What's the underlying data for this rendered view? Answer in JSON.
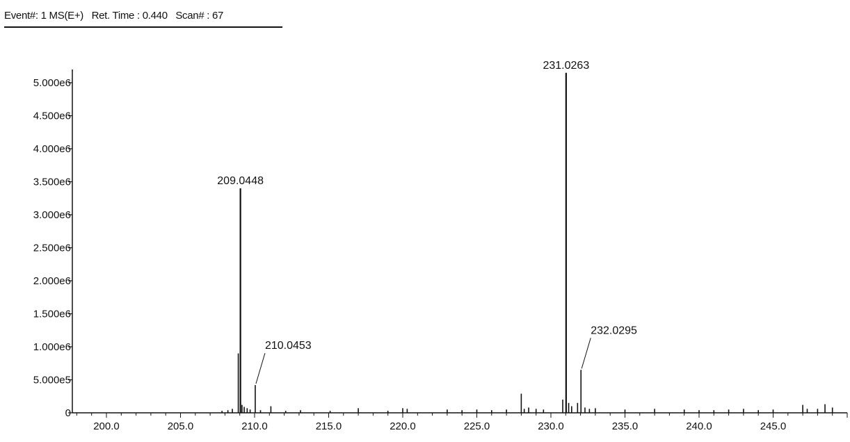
{
  "header": {
    "event": "Event#: 1 MS(E+)",
    "ret_time": "Ret. Time : 0.440",
    "scan": "Scan# : 67"
  },
  "chart_data": {
    "type": "bar",
    "title": "",
    "xlabel": "",
    "ylabel": "",
    "xlim": [
      197.7,
      250.0
    ],
    "ylim": [
      0,
      5200000
    ],
    "x_ticks": [
      200.0,
      205.0,
      210.0,
      215.0,
      220.0,
      225.0,
      230.0,
      235.0,
      240.0,
      245.0
    ],
    "x_tick_labels": [
      "200.0",
      "205.0",
      "210.0",
      "215.0",
      "220.0",
      "225.0",
      "230.0",
      "235.0",
      "240.0",
      "245.0"
    ],
    "y_ticks": [
      0,
      500000,
      1000000,
      1500000,
      2000000,
      2500000,
      3000000,
      3500000,
      4000000,
      4500000,
      5000000
    ],
    "y_tick_labels": [
      "0",
      "5.000e5",
      "1.000e6",
      "1.500e6",
      "2.000e6",
      "2.500e6",
      "3.000e6",
      "3.500e6",
      "4.000e6",
      "4.500e6",
      "5.000e6"
    ],
    "grid": false,
    "peaks": [
      {
        "mz": 207.8,
        "intensity": 30000
      },
      {
        "mz": 208.2,
        "intensity": 40000
      },
      {
        "mz": 208.5,
        "intensity": 60000
      },
      {
        "mz": 208.9,
        "intensity": 900000
      },
      {
        "mz": 209.0448,
        "intensity": 3400000,
        "label": "209.0448"
      },
      {
        "mz": 209.15,
        "intensity": 120000
      },
      {
        "mz": 209.3,
        "intensity": 90000
      },
      {
        "mz": 209.5,
        "intensity": 70000
      },
      {
        "mz": 209.7,
        "intensity": 50000
      },
      {
        "mz": 210.0453,
        "intensity": 420000,
        "label": "210.0453"
      },
      {
        "mz": 210.4,
        "intensity": 40000
      },
      {
        "mz": 211.1,
        "intensity": 100000
      },
      {
        "mz": 212.1,
        "intensity": 30000
      },
      {
        "mz": 213.1,
        "intensity": 40000
      },
      {
        "mz": 215.1,
        "intensity": 30000
      },
      {
        "mz": 217.0,
        "intensity": 70000
      },
      {
        "mz": 219.0,
        "intensity": 30000
      },
      {
        "mz": 220.0,
        "intensity": 70000
      },
      {
        "mz": 220.3,
        "intensity": 60000
      },
      {
        "mz": 223.0,
        "intensity": 50000
      },
      {
        "mz": 224.0,
        "intensity": 40000
      },
      {
        "mz": 225.0,
        "intensity": 50000
      },
      {
        "mz": 226.0,
        "intensity": 40000
      },
      {
        "mz": 227.0,
        "intensity": 50000
      },
      {
        "mz": 228.0,
        "intensity": 290000
      },
      {
        "mz": 228.2,
        "intensity": 60000
      },
      {
        "mz": 228.5,
        "intensity": 80000
      },
      {
        "mz": 229.0,
        "intensity": 60000
      },
      {
        "mz": 229.5,
        "intensity": 50000
      },
      {
        "mz": 230.8,
        "intensity": 200000
      },
      {
        "mz": 231.0263,
        "intensity": 5150000,
        "label": "231.0263"
      },
      {
        "mz": 231.2,
        "intensity": 150000
      },
      {
        "mz": 231.4,
        "intensity": 100000
      },
      {
        "mz": 231.8,
        "intensity": 150000
      },
      {
        "mz": 232.0295,
        "intensity": 650000,
        "label": "232.0295"
      },
      {
        "mz": 232.3,
        "intensity": 80000
      },
      {
        "mz": 232.6,
        "intensity": 60000
      },
      {
        "mz": 233.0,
        "intensity": 70000
      },
      {
        "mz": 235.0,
        "intensity": 50000
      },
      {
        "mz": 237.0,
        "intensity": 60000
      },
      {
        "mz": 239.0,
        "intensity": 50000
      },
      {
        "mz": 240.0,
        "intensity": 40000
      },
      {
        "mz": 241.0,
        "intensity": 40000
      },
      {
        "mz": 242.0,
        "intensity": 50000
      },
      {
        "mz": 243.0,
        "intensity": 60000
      },
      {
        "mz": 244.0,
        "intensity": 40000
      },
      {
        "mz": 245.0,
        "intensity": 50000
      },
      {
        "mz": 247.0,
        "intensity": 120000
      },
      {
        "mz": 247.3,
        "intensity": 60000
      },
      {
        "mz": 248.0,
        "intensity": 60000
      },
      {
        "mz": 248.5,
        "intensity": 130000
      },
      {
        "mz": 249.0,
        "intensity": 80000
      }
    ]
  }
}
